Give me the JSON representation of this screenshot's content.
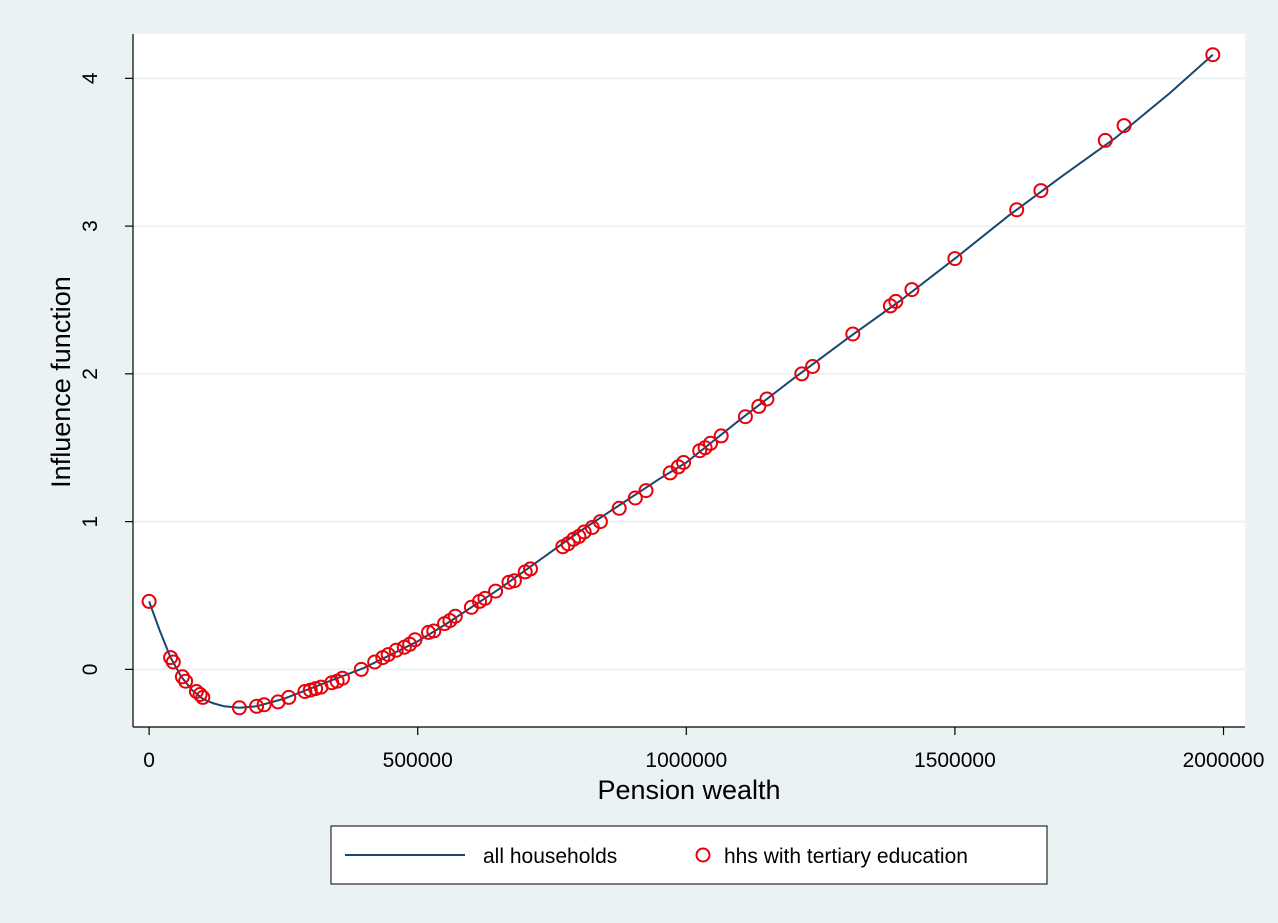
{
  "chart_data": {
    "type": "line",
    "title": "",
    "xlabel": "Pension wealth",
    "ylabel": "Influence function",
    "xlim": [
      -30000,
      2040000
    ],
    "ylim": [
      -0.39,
      4.3
    ],
    "xticks": [
      0,
      500000,
      1000000,
      1500000,
      2000000
    ],
    "xtick_labels": [
      "0",
      "500000",
      "1000000",
      "1500000",
      "2000000"
    ],
    "yticks": [
      0,
      1,
      2,
      3,
      4
    ],
    "ytick_labels": [
      "0",
      "1",
      "2",
      "3",
      "4"
    ],
    "grid": "horizontal",
    "legend": "bottom",
    "colors": {
      "line": "#1a476f",
      "markers": "#e8000b",
      "background": "#eaf2f3",
      "plot": "#ffffff"
    },
    "series": [
      {
        "name": "all households",
        "kind": "line",
        "x": [
          0,
          20000,
          40000,
          60000,
          80000,
          100000,
          120000,
          140000,
          168000,
          200000,
          250000,
          300000,
          350000,
          400000,
          450000,
          500000,
          550000,
          600000,
          650000,
          700000,
          750000,
          800000,
          850000,
          900000,
          950000,
          1000000,
          1100000,
          1200000,
          1300000,
          1400000,
          1500000,
          1600000,
          1700000,
          1800000,
          1900000,
          1980000
        ],
        "y": [
          0.46,
          0.26,
          0.08,
          -0.05,
          -0.14,
          -0.2,
          -0.23,
          -0.25,
          -0.26,
          -0.25,
          -0.2,
          -0.13,
          -0.06,
          0.01,
          0.1,
          0.19,
          0.3,
          0.42,
          0.54,
          0.67,
          0.8,
          0.93,
          1.05,
          1.17,
          1.29,
          1.4,
          1.69,
          1.97,
          2.24,
          2.5,
          2.78,
          3.07,
          3.34,
          3.6,
          3.9,
          4.16
        ]
      },
      {
        "name": "hhs with tertiary education",
        "kind": "scatter",
        "x": [
          0,
          40000,
          45000,
          62000,
          68000,
          88000,
          95000,
          100000,
          168000,
          200000,
          214000,
          240000,
          260000,
          290000,
          300000,
          310000,
          320000,
          340000,
          350000,
          360000,
          395000,
          420000,
          435000,
          445000,
          460000,
          475000,
          485000,
          495000,
          520000,
          530000,
          550000,
          560000,
          570000,
          600000,
          615000,
          625000,
          645000,
          670000,
          680000,
          700000,
          710000,
          770000,
          780000,
          790000,
          800000,
          810000,
          825000,
          840000,
          875000,
          905000,
          925000,
          970000,
          985000,
          995000,
          1025000,
          1035000,
          1045000,
          1065000,
          1110000,
          1135000,
          1150000,
          1215000,
          1235000,
          1310000,
          1380000,
          1390000,
          1420000,
          1500000,
          1615000,
          1660000,
          1780000,
          1815000,
          1980000
        ],
        "y": [
          0.46,
          0.08,
          0.05,
          -0.05,
          -0.08,
          -0.15,
          -0.17,
          -0.19,
          -0.26,
          -0.25,
          -0.24,
          -0.22,
          -0.19,
          -0.15,
          -0.14,
          -0.13,
          -0.12,
          -0.09,
          -0.08,
          -0.06,
          0.0,
          0.05,
          0.08,
          0.1,
          0.13,
          0.15,
          0.17,
          0.2,
          0.25,
          0.26,
          0.31,
          0.33,
          0.36,
          0.42,
          0.46,
          0.48,
          0.53,
          0.59,
          0.6,
          0.66,
          0.68,
          0.83,
          0.85,
          0.88,
          0.9,
          0.93,
          0.96,
          1.0,
          1.09,
          1.16,
          1.21,
          1.33,
          1.37,
          1.4,
          1.48,
          1.5,
          1.53,
          1.58,
          1.71,
          1.78,
          1.83,
          2.0,
          2.05,
          2.27,
          2.46,
          2.49,
          2.57,
          2.78,
          3.11,
          3.24,
          3.58,
          3.68,
          4.16
        ]
      }
    ]
  }
}
